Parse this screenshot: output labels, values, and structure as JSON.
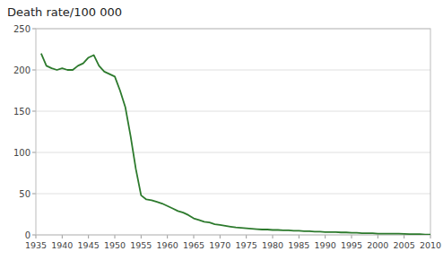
{
  "chart_data": {
    "type": "line",
    "title": "Death rate/100 000",
    "x": [
      1936,
      1937,
      1938,
      1939,
      1940,
      1941,
      1942,
      1943,
      1944,
      1945,
      1946,
      1947,
      1948,
      1949,
      1950,
      1951,
      1952,
      1953,
      1954,
      1955,
      1956,
      1957,
      1958,
      1959,
      1960,
      1961,
      1962,
      1963,
      1964,
      1965,
      1966,
      1967,
      1968,
      1969,
      1970,
      1971,
      1972,
      1973,
      1974,
      1975,
      1976,
      1977,
      1978,
      1979,
      1980,
      1981,
      1982,
      1983,
      1984,
      1985,
      1986,
      1987,
      1988,
      1989,
      1990,
      1991,
      1992,
      1993,
      1994,
      1995,
      1996,
      1997,
      1998,
      1999,
      2000,
      2001,
      2002,
      2003,
      2004,
      2005,
      2006,
      2007,
      2008,
      2009,
      2010
    ],
    "values": [
      220,
      205,
      202,
      200,
      202,
      200,
      200,
      205,
      208,
      215,
      218,
      205,
      198,
      195,
      192,
      175,
      155,
      120,
      80,
      48,
      43,
      42,
      40,
      38,
      35,
      32,
      29,
      27,
      24,
      20,
      18,
      16,
      15,
      13,
      12,
      11,
      10,
      9,
      8.5,
      8,
      7.5,
      7,
      6.5,
      6.5,
      6,
      6,
      5.5,
      5.5,
      5,
      5,
      4.5,
      4.5,
      4,
      4,
      3.5,
      3.5,
      3.5,
      3,
      3,
      2.5,
      2.5,
      2,
      2,
      2,
      1.5,
      1.5,
      1.5,
      1.5,
      1.5,
      1.2,
      1,
      1,
      0.8,
      0.5,
      0.3
    ],
    "color": "#2d7a2d",
    "xlim": [
      1935,
      2010
    ],
    "ylim": [
      0,
      250
    ],
    "xticks": [
      1935,
      1940,
      1945,
      1950,
      1955,
      1960,
      1965,
      1970,
      1975,
      1980,
      1985,
      1990,
      1995,
      2000,
      2005,
      2010
    ],
    "yticks": [
      0,
      50,
      100,
      150,
      200,
      250
    ],
    "grid": true
  }
}
